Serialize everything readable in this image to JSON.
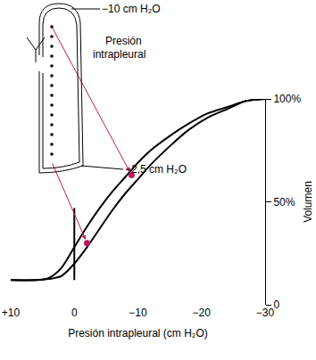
{
  "chart_data": {
    "type": "line",
    "x_label": "Presión intrapleural (cm H₂O)",
    "y_label": "Volumen",
    "xlim": [
      10,
      -30
    ],
    "xticks": [
      {
        "value": 10,
        "label": "+10"
      },
      0,
      {
        "value": -10,
        "label": "−10"
      },
      {
        "value": -20,
        "label": "−20"
      },
      {
        "value": -30,
        "label": "−30"
      }
    ],
    "ylim": [
      0,
      100
    ],
    "yticks": [
      0,
      {
        "value": 50,
        "label": "50%"
      },
      {
        "value": 100,
        "label": "100%"
      }
    ],
    "grid": false,
    "tick_labels": true,
    "annotations": [
      "−10 cm H₂O",
      "Presión intrapleural",
      "−2,5 cm H₂O"
    ],
    "series": [
      {
        "type": "line",
        "color": "#000000",
        "line_style": "solid",
        "x": [
          10,
          6,
          4,
          2,
          0,
          -2,
          -4,
          -6,
          -8,
          -10,
          -12,
          -15,
          -18,
          -21,
          -24,
          -27,
          -30
        ],
        "values": [
          12,
          12,
          13,
          18,
          28,
          38,
          47,
          55,
          62,
          69,
          75,
          82,
          88,
          93,
          96,
          99,
          100
        ]
      },
      {
        "type": "line",
        "color": "#000000",
        "line_style": "solid",
        "x": [
          10,
          6,
          4,
          2,
          0,
          -2,
          -4,
          -6,
          -8,
          -10,
          -12,
          -15,
          -18,
          -21,
          -24,
          -27,
          -30
        ],
        "values": [
          12,
          12,
          12.5,
          14,
          20,
          28,
          37,
          46,
          54,
          61,
          68,
          77,
          85,
          91,
          95,
          99,
          100
        ]
      },
      {
        "type": "line",
        "color": "#000000",
        "line_style": "solid",
        "x": [
          0,
          0
        ],
        "values": [
          12,
          47
        ]
      },
      {
        "type": "scatter",
        "color": "#c2185b",
        "marker": "circle",
        "x": [
          -9,
          -2
        ],
        "values": [
          63,
          30
        ]
      }
    ]
  }
}
